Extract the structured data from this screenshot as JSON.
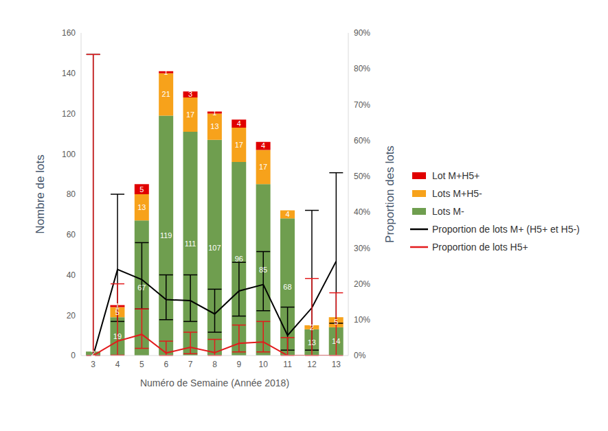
{
  "chart_data": {
    "type": "bar",
    "x_label": "Numéro de Semaine (Année 2018)",
    "y_label": "Nombre de lots",
    "y2_label": "Proportion des lots",
    "categories": [
      "3",
      "4",
      "5",
      "6",
      "7",
      "8",
      "9",
      "10",
      "11",
      "12",
      "13"
    ],
    "ylim": [
      0,
      160
    ],
    "yticks": [
      0,
      20,
      40,
      60,
      80,
      100,
      120,
      140,
      160
    ],
    "y2lim": [
      0,
      90
    ],
    "y2ticks": [
      {
        "value": 0,
        "label": "0%"
      },
      {
        "value": 10,
        "label": "10%"
      },
      {
        "value": 20,
        "label": "20%"
      },
      {
        "value": 30,
        "label": "30%"
      },
      {
        "value": 40,
        "label": "40%"
      },
      {
        "value": 50,
        "label": "50%"
      },
      {
        "value": 60,
        "label": "60%"
      },
      {
        "value": 70,
        "label": "70%"
      },
      {
        "value": 80,
        "label": "80%"
      },
      {
        "value": 90,
        "label": "90%"
      }
    ],
    "stacked": true,
    "data_labels": true,
    "grid": false,
    "legend": "right",
    "series": [
      {
        "name": "Lot M+H5+",
        "type": "bar",
        "color": "#e00000",
        "values": [
          0,
          1,
          5,
          1,
          3,
          1,
          4,
          4,
          0,
          0,
          0
        ]
      },
      {
        "name": "Lots M+H5-",
        "type": "bar",
        "color": "#f7a21b",
        "values": [
          0,
          5,
          13,
          21,
          17,
          13,
          17,
          17,
          4,
          2,
          5
        ]
      },
      {
        "name": "Lots M-",
        "type": "bar",
        "color": "#6f9e4f",
        "values": [
          2,
          19,
          67,
          119,
          111,
          107,
          96,
          85,
          68,
          13,
          14
        ]
      },
      {
        "name": "Proportion de lots M+ (H5+ et H5-)",
        "type": "line",
        "axis": "y2",
        "color": "#000000",
        "line_style": "solid",
        "values": [
          0,
          24,
          21.2,
          15.6,
          15.3,
          11.6,
          18,
          19.8,
          5.6,
          13.3,
          26.3
        ],
        "error_low": [
          0,
          9.5,
          13,
          10,
          9.5,
          6.5,
          11,
          12.5,
          1.5,
          1.5,
          9
        ],
        "error_high": [
          84,
          45,
          31.5,
          22.5,
          22.5,
          18.5,
          26,
          29,
          13.5,
          40.5,
          51
        ]
      },
      {
        "name": "Proportion de lots H5+",
        "type": "line",
        "axis": "y2",
        "color": "#e31a1c",
        "line_style": "solid",
        "values": [
          0,
          4,
          5.9,
          0.7,
          2.3,
          0.8,
          3.4,
          3.8,
          0,
          0,
          0
        ],
        "error_low": [
          0,
          0.1,
          2,
          0,
          0.5,
          0,
          1,
          1,
          0,
          0,
          0
        ],
        "error_high": [
          84,
          20,
          13,
          4,
          6.5,
          4.5,
          8.5,
          9.5,
          5,
          21.5,
          17.5
        ]
      }
    ]
  }
}
